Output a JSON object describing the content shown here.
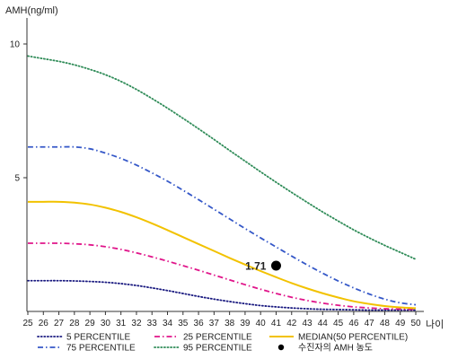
{
  "chart_data": {
    "type": "line",
    "ylabel": "AMH(ng/ml)",
    "xlabel": "나이",
    "xlim": [
      25,
      50
    ],
    "ylim": [
      0,
      11
    ],
    "x_ticks": [
      "25",
      "26",
      "27",
      "28",
      "29",
      "30",
      "31",
      "32",
      "33",
      "34",
      "35",
      "36",
      "37",
      "38",
      "39",
      "40",
      "41",
      "42",
      "43",
      "44",
      "45",
      "46",
      "47",
      "48",
      "49",
      "50"
    ],
    "y_ticks": [
      "5",
      "10"
    ],
    "x": [
      25,
      26,
      27,
      28,
      29,
      30,
      31,
      32,
      33,
      34,
      35,
      36,
      37,
      38,
      39,
      40,
      41,
      42,
      43,
      44,
      45,
      46,
      47,
      48,
      49,
      50
    ],
    "series": [
      {
        "name": "5 PERCENTILE",
        "color": "#1a1a80",
        "dash": "dotted",
        "values": [
          1.15,
          1.15,
          1.15,
          1.14,
          1.12,
          1.09,
          1.04,
          0.97,
          0.88,
          0.78,
          0.67,
          0.56,
          0.46,
          0.37,
          0.29,
          0.22,
          0.17,
          0.13,
          0.1,
          0.08,
          0.07,
          0.06,
          0.05,
          0.05,
          0.05,
          0.05
        ]
      },
      {
        "name": "25 PERCENTILE",
        "color": "#e0158a",
        "dash": "dashdot",
        "values": [
          2.55,
          2.55,
          2.55,
          2.53,
          2.49,
          2.42,
          2.32,
          2.19,
          2.04,
          1.88,
          1.71,
          1.54,
          1.36,
          1.18,
          1.0,
          0.83,
          0.67,
          0.53,
          0.41,
          0.31,
          0.23,
          0.17,
          0.13,
          0.1,
          0.09,
          0.08
        ]
      },
      {
        "name": "MEDIAN(50 PERCENTILE)",
        "color": "#f2c200",
        "dash": "solid",
        "values": [
          4.1,
          4.1,
          4.1,
          4.07,
          4.0,
          3.88,
          3.72,
          3.52,
          3.29,
          3.04,
          2.78,
          2.52,
          2.26,
          2.0,
          1.75,
          1.51,
          1.28,
          1.06,
          0.86,
          0.68,
          0.52,
          0.38,
          0.28,
          0.2,
          0.15,
          0.12
        ]
      },
      {
        "name": "75 PERCENTILE",
        "color": "#3558c8",
        "dash": "dashdot",
        "values": [
          6.15,
          6.15,
          6.15,
          6.15,
          6.08,
          5.92,
          5.72,
          5.47,
          5.18,
          4.87,
          4.53,
          4.18,
          3.82,
          3.46,
          3.1,
          2.75,
          2.41,
          2.07,
          1.74,
          1.43,
          1.14,
          0.88,
          0.65,
          0.46,
          0.32,
          0.25
        ]
      },
      {
        "name": "95 PERCENTILE",
        "color": "#2e8b57",
        "dash": "dotted",
        "values": [
          9.55,
          9.45,
          9.35,
          9.22,
          9.05,
          8.85,
          8.6,
          8.3,
          7.96,
          7.6,
          7.22,
          6.83,
          6.43,
          6.02,
          5.62,
          5.22,
          4.83,
          4.45,
          4.08,
          3.72,
          3.38,
          3.05,
          2.75,
          2.47,
          2.21,
          1.95
        ]
      }
    ],
    "marker": {
      "name": "수진자의 AMH 농도",
      "x": 41,
      "y": 1.71,
      "label": "1.71",
      "color": "#000000"
    },
    "legend": {
      "position": "bottom",
      "columns": 3,
      "entries": [
        "5 PERCENTILE",
        "25 PERCENTILE",
        "MEDIAN(50 PERCENTILE)",
        "75 PERCENTILE",
        "95 PERCENTILE",
        "수진자의 AMH 농도"
      ]
    },
    "grid": false
  }
}
